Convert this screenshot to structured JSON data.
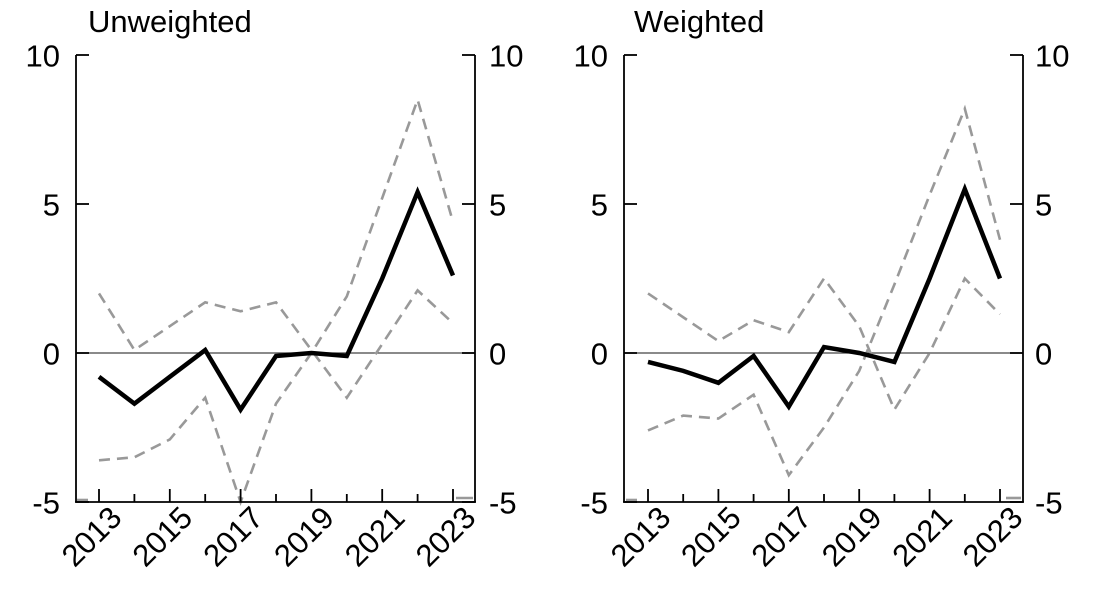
{
  "figure": {
    "background_color": "#ffffff",
    "panel_titles": [
      "Unweighted",
      "Weighted"
    ]
  },
  "chart_data": [
    {
      "type": "line",
      "title": "Unweighted",
      "xlabel": "",
      "ylabel": "",
      "x": [
        2013,
        2014,
        2015,
        2016,
        2017,
        2018,
        2019,
        2020,
        2021,
        2022,
        2023
      ],
      "series": [
        {
          "name": "point-estimate",
          "style": "solid",
          "color": "#000000",
          "width": 4.5,
          "values": [
            -0.8,
            -1.7,
            -0.8,
            0.1,
            -1.9,
            -0.1,
            0.0,
            -0.1,
            2.5,
            5.4,
            2.6
          ]
        },
        {
          "name": "dashed-band-1",
          "style": "dashed",
          "color": "#999999",
          "width": 2.6,
          "values": [
            2.0,
            0.1,
            0.9,
            1.7,
            1.4,
            1.7,
            0.1,
            -1.5,
            0.3,
            2.1,
            1.0
          ]
        },
        {
          "name": "dashed-band-2",
          "style": "dashed",
          "color": "#999999",
          "width": 2.6,
          "values": [
            -3.6,
            -3.5,
            -2.9,
            -1.5,
            -5.0,
            -1.7,
            0.0,
            1.9,
            5.2,
            8.5,
            4.4
          ]
        }
      ],
      "ylim": [
        -5,
        10
      ],
      "yticks": [
        10,
        5,
        0,
        -5
      ],
      "ytick_labels": [
        "10",
        "5",
        "0",
        "-5"
      ],
      "ytick_labels_both_sides": true,
      "xticks_major": [
        2013,
        2015,
        2017,
        2019,
        2021,
        2023
      ],
      "xticks_minor": [
        2014,
        2016,
        2018,
        2020,
        2022
      ],
      "xtick_label_rotation_deg": 45,
      "zero_line": true,
      "grid": false,
      "legend": "none"
    },
    {
      "type": "line",
      "title": "Weighted",
      "xlabel": "",
      "ylabel": "",
      "x": [
        2013,
        2014,
        2015,
        2016,
        2017,
        2018,
        2019,
        2020,
        2021,
        2022,
        2023
      ],
      "series": [
        {
          "name": "point-estimate",
          "style": "solid",
          "color": "#000000",
          "width": 4.5,
          "values": [
            -0.3,
            -0.6,
            -1.0,
            -0.1,
            -1.8,
            0.2,
            0.0,
            -0.3,
            2.5,
            5.5,
            2.5
          ]
        },
        {
          "name": "dashed-band-1",
          "style": "dashed",
          "color": "#999999",
          "width": 2.6,
          "values": [
            2.0,
            1.2,
            0.4,
            1.1,
            0.7,
            2.5,
            0.9,
            -1.9,
            0.0,
            2.5,
            1.3
          ]
        },
        {
          "name": "dashed-band-2",
          "style": "dashed",
          "color": "#999999",
          "width": 2.6,
          "values": [
            -2.6,
            -2.1,
            -2.2,
            -1.4,
            -4.1,
            -2.5,
            -0.6,
            2.3,
            5.3,
            8.2,
            3.8
          ]
        }
      ],
      "ylim": [
        -5,
        10
      ],
      "yticks": [
        10,
        5,
        0,
        -5
      ],
      "ytick_labels": [
        "10",
        "5",
        "0",
        "-5"
      ],
      "ytick_labels_both_sides": true,
      "xticks_major": [
        2013,
        2015,
        2017,
        2019,
        2021,
        2023
      ],
      "xticks_minor": [
        2014,
        2016,
        2018,
        2020,
        2022
      ],
      "xtick_label_rotation_deg": 45,
      "zero_line": true,
      "grid": false,
      "legend": "none"
    }
  ],
  "colors": {
    "solid_line": "#000000",
    "dashed_line": "#999999",
    "axis": "#000000",
    "zero_line": "#444444"
  }
}
